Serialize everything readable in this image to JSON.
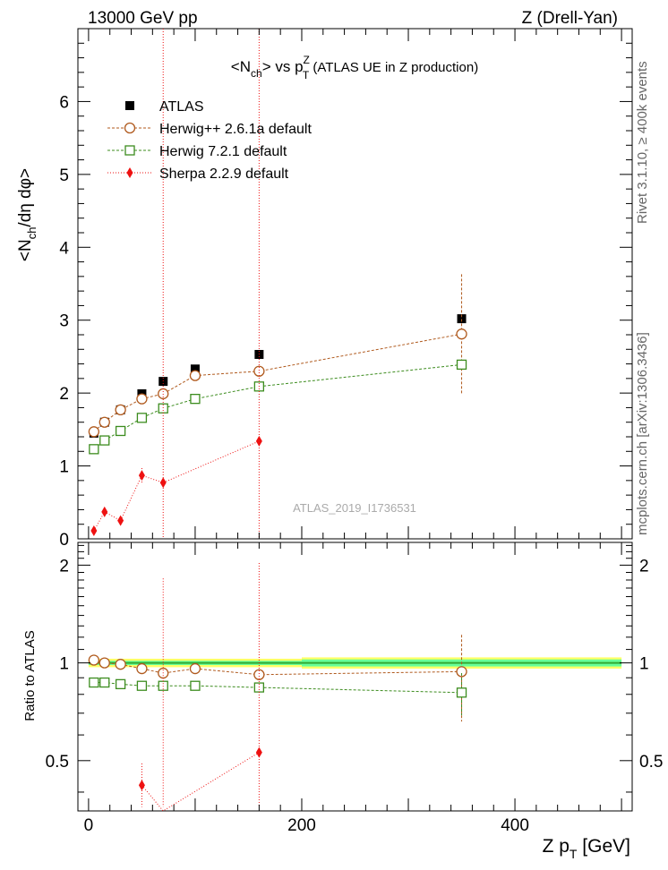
{
  "header": {
    "left": "13000 GeV pp",
    "right": "Z (Drell-Yan)"
  },
  "side_labels": {
    "rivet": "Rivet 3.1.10, ≥ 400k events",
    "mcplots": "mcplots.cern.ch [arXiv:1306.3436]"
  },
  "watermark": "ATLAS_2019_I1736531",
  "colors": {
    "atlas": "#000000",
    "herwigpp": "#b05a1e",
    "herwig7": "#3c8c1e",
    "sherpa": "#ee1111",
    "band_inner": "#66ff99",
    "band_outer": "#ffff66",
    "ref_line": "#33aa33"
  },
  "chart_data": [
    {
      "type": "scatter",
      "title": "<N_ch> vs p_T^Z (ATLAS UE in Z production)",
      "xlabel": "Z p_T [GeV]",
      "ylabel": "<N_ch/dη dφ>",
      "xlim": [
        -10,
        510
      ],
      "ylim": [
        0,
        7
      ],
      "x_ticks": [
        "0",
        "200",
        "400"
      ],
      "y_ticks": [
        "0",
        "1",
        "2",
        "3",
        "4",
        "5",
        "6"
      ],
      "legend_position": "top-left",
      "series": [
        {
          "name": "ATLAS",
          "marker": "filled-square",
          "x": [
            5,
            15,
            30,
            50,
            70,
            100,
            160,
            350
          ],
          "values": [
            1.45,
            1.6,
            1.77,
            1.99,
            2.16,
            2.33,
            2.53,
            3.02
          ]
        },
        {
          "name": "Herwig++ 2.6.1a default",
          "marker": "open-circle",
          "x": [
            5,
            15,
            30,
            50,
            70,
            100,
            160,
            350
          ],
          "values": [
            1.47,
            1.6,
            1.77,
            1.92,
            1.99,
            2.24,
            2.3,
            2.81
          ],
          "err": [
            0,
            0,
            0,
            0,
            0,
            0,
            0,
            0.82
          ]
        },
        {
          "name": "Herwig 7.2.1 default",
          "marker": "open-square",
          "x": [
            5,
            15,
            30,
            50,
            70,
            100,
            160,
            350
          ],
          "values": [
            1.23,
            1.35,
            1.48,
            1.66,
            1.79,
            1.92,
            2.09,
            2.39
          ]
        },
        {
          "name": "Sherpa 2.2.9 default",
          "marker": "filled-diamond",
          "x": [
            5,
            15,
            30,
            50,
            70,
            160
          ],
          "values": [
            0.11,
            0.37,
            0.25,
            0.87,
            0.77,
            1.34
          ],
          "err": [
            0.03,
            0.06,
            0.05,
            0.1,
            6.5,
            6.5
          ]
        }
      ]
    },
    {
      "type": "scatter",
      "xlabel": "Z p_T [GeV]",
      "ylabel": "Ratio to ATLAS",
      "xlim": [
        -10,
        510
      ],
      "ylim": [
        0.35,
        2.35
      ],
      "x_ticks": [
        "0",
        "200",
        "400"
      ],
      "y_ticks": [
        "0.5",
        "1",
        "2"
      ],
      "series": [
        {
          "name": "Herwig++ 2.6.1a default",
          "x": [
            5,
            15,
            30,
            50,
            70,
            100,
            160,
            350
          ],
          "values": [
            1.02,
            1.0,
            0.99,
            0.96,
            0.93,
            0.96,
            0.92,
            0.94
          ],
          "err": [
            0,
            0,
            0,
            0,
            0,
            0,
            0,
            0.28
          ]
        },
        {
          "name": "Herwig 7.2.1 default",
          "x": [
            5,
            15,
            30,
            50,
            70,
            100,
            160,
            350
          ],
          "values": [
            0.87,
            0.87,
            0.86,
            0.85,
            0.85,
            0.85,
            0.84,
            0.81
          ],
          "err": [
            0,
            0,
            0,
            0,
            0,
            0,
            0,
            0.12
          ]
        },
        {
          "name": "Sherpa 2.2.9 default",
          "x": [
            50,
            70,
            160
          ],
          "values": [
            0.42,
            0.32,
            0.53
          ],
          "err": [
            0.07,
            1.5,
            1.5
          ]
        }
      ],
      "band": {
        "x_edges": [
          0,
          200,
          500
        ],
        "inner": [
          0.015,
          0.025
        ],
        "outer": [
          0.03,
          0.04
        ]
      }
    }
  ]
}
